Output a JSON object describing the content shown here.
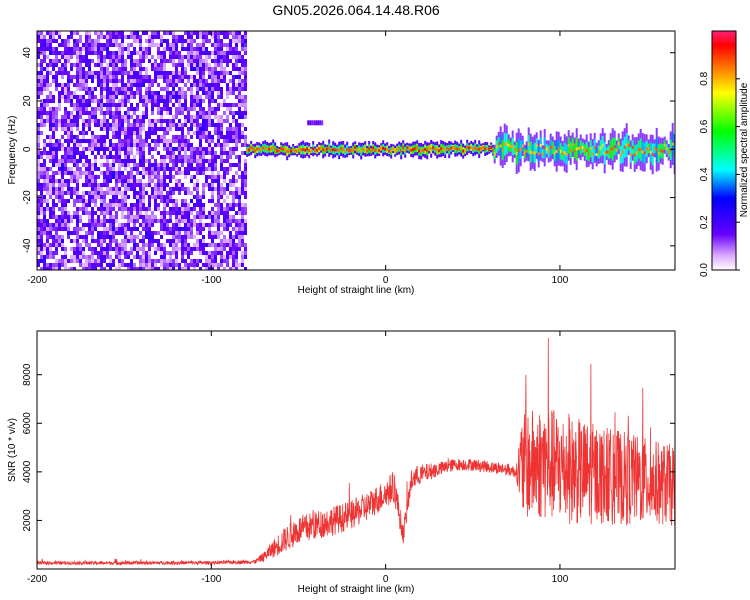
{
  "figure_title": "GN05.2026.064.14.48.R06",
  "chart_data": [
    {
      "type": "heatmap",
      "title": "GN05.2026.064.14.48.R06",
      "xlabel": "Height of straight line (km)",
      "ylabel": "Frequency (Hz)",
      "xlim": [
        -200,
        166
      ],
      "ylim": [
        -50,
        49
      ],
      "x_ticks": [
        -200,
        -100,
        0,
        100
      ],
      "y_ticks": [
        -40,
        -20,
        0,
        20,
        40
      ],
      "colorbar": {
        "label": "Normalized spectral amplitude",
        "range": [
          0.0,
          1.0
        ],
        "ticks": [
          0.0,
          0.2,
          0.4,
          0.6,
          0.8
        ],
        "tick_labels": [
          "0.0",
          "0.2",
          "0.4",
          "0.6",
          "0.8"
        ]
      },
      "regions": [
        {
          "x_range": [
            -200,
            -80
          ],
          "description": "broadband noise",
          "amplitude": [
            0.05,
            0.2
          ]
        },
        {
          "x_range": [
            -80,
            62
          ],
          "description": "narrow tone near 0 Hz",
          "peak_frequency": 0,
          "amplitude": [
            0.3,
            0.95
          ]
        },
        {
          "x_range": [
            62,
            166
          ],
          "description": "broadened tone near 0 Hz",
          "peak_frequency": 0,
          "amplitude": [
            0.2,
            0.9
          ]
        }
      ]
    },
    {
      "type": "line",
      "xlabel": "Height of straight line (km)",
      "ylabel": "SNR (10 * v/v)",
      "xlim": [
        -200,
        166
      ],
      "ylim": [
        0,
        9800
      ],
      "x_ticks": [
        -200,
        -100,
        0,
        100
      ],
      "y_ticks": [
        2000,
        4000,
        6000,
        8000
      ],
      "series": [
        {
          "name": "SNR",
          "color": "#ee3333",
          "x": [
            -200,
            -150,
            -100,
            -75,
            -70,
            -60,
            -50,
            -40,
            -30,
            -20,
            -10,
            0,
            5,
            10,
            15,
            20,
            30,
            40,
            50,
            60,
            70,
            75,
            78,
            90,
            100,
            110,
            120,
            130,
            140,
            150,
            160,
            166
          ],
          "y": [
            250,
            250,
            260,
            300,
            500,
            1100,
            1600,
            1800,
            2000,
            2200,
            2600,
            3100,
            3400,
            1400,
            3700,
            3900,
            4100,
            4300,
            4300,
            4200,
            4100,
            4000,
            4200,
            4400,
            4200,
            4000,
            3900,
            3800,
            3700,
            3600,
            3500,
            3400
          ],
          "spread": [
            70,
            70,
            70,
            80,
            200,
            500,
            600,
            600,
            600,
            600,
            600,
            600,
            700,
            400,
            500,
            400,
            300,
            250,
            250,
            250,
            250,
            250,
            2200,
            2400,
            2300,
            2200,
            2100,
            2000,
            1900,
            1800,
            1700,
            1700
          ]
        }
      ]
    }
  ]
}
